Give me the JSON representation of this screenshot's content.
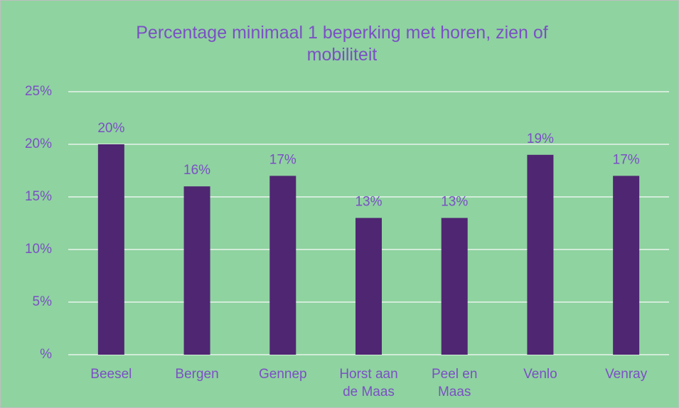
{
  "chart_data": {
    "type": "bar",
    "title": "Percentage minimaal 1 beperking met horen, zien of mobiliteit",
    "categories": [
      "Beesel",
      "Bergen",
      "Gennep",
      "Horst aan de Maas",
      "Peel en Maas",
      "Venlo",
      "Venray"
    ],
    "values": [
      20,
      16,
      17,
      13,
      13,
      19,
      17
    ],
    "value_labels": [
      "20%",
      "16%",
      "17%",
      "13%",
      "13%",
      "19%",
      "17%"
    ],
    "color": "#4f2672",
    "ylim": [
      0,
      25
    ],
    "yticks": [
      {
        "value": 0,
        "label": "%"
      },
      {
        "value": 5,
        "label": "5%"
      },
      {
        "value": 10,
        "label": "10%"
      },
      {
        "value": 15,
        "label": "15%"
      },
      {
        "value": 20,
        "label": "20%"
      },
      {
        "value": 25,
        "label": "25%"
      }
    ],
    "grid": true
  }
}
